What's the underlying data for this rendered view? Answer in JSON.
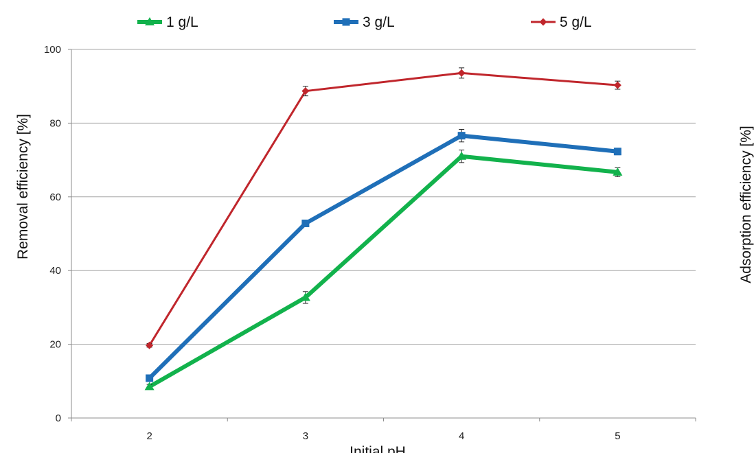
{
  "chart_data": {
    "type": "line",
    "title": "",
    "xlabel": "Initial pH",
    "ylabel": "Removal efficiency  [%]",
    "y2label": "Adsorption  efficiency  [%]",
    "categories": [
      "2",
      "3",
      "4",
      "5"
    ],
    "x": [
      2,
      3,
      4,
      5
    ],
    "ylim": [
      0,
      100
    ],
    "yticks": [
      0,
      20,
      40,
      60,
      80,
      100
    ],
    "grid": true,
    "legend_position": "top",
    "series": [
      {
        "name": "1 g/L",
        "color": "#12b24c",
        "marker": "triangle",
        "stroke": "thick",
        "values": [
          8.5,
          32.7,
          71.0,
          66.7
        ],
        "errors": [
          0.6,
          1.6,
          1.7,
          1.2
        ]
      },
      {
        "name": "3 g/L",
        "color": "#1f6fb8",
        "marker": "square",
        "stroke": "thick",
        "values": [
          10.8,
          52.8,
          76.6,
          72.3
        ],
        "errors": [
          0.6,
          0.9,
          1.7,
          0.9
        ]
      },
      {
        "name": "5 g/L",
        "color": "#c0262c",
        "marker": "diamond",
        "stroke": "thin",
        "values": [
          19.7,
          88.7,
          93.6,
          90.3
        ],
        "errors": [
          0.5,
          1.3,
          1.4,
          1.1
        ]
      }
    ]
  }
}
